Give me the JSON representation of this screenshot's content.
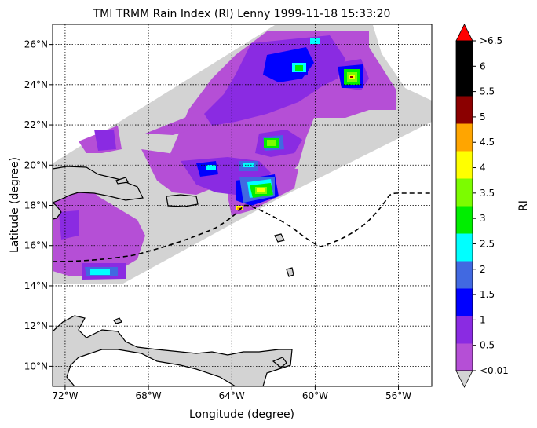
{
  "title": "TMI TRMM Rain Index (RI) Lenny 1999-11-18 15:33:20",
  "xlabel": "Longitude (degree)",
  "ylabel": "Latitude (degree)",
  "colorbar": {
    "label": "RI",
    "tick_labels": [
      "<0.01",
      "0.5",
      "1",
      "1.5",
      "2",
      "2.5",
      "3",
      "3.5",
      "4",
      "4.5",
      "5",
      "5.5",
      "6",
      ">6.5"
    ],
    "under_color": "#d3d3d3",
    "over_color": "#ff0000",
    "colors": [
      "#b54fd6",
      "#8a2be2",
      "#0000ff",
      "#4169e1",
      "#00ffff",
      "#00ee00",
      "#7cfc00",
      "#ffff00",
      "#ffa500",
      "#8b0000",
      "#000000",
      "#000000"
    ]
  },
  "map": {
    "lon_ticks": [
      "72°W",
      "68°W",
      "64°W",
      "60°W",
      "56°W"
    ],
    "lat_ticks": [
      "26°N",
      "24°N",
      "22°N",
      "20°N",
      "18°N",
      "16°N",
      "14°N",
      "12°N",
      "10°N"
    ],
    "lon_range": [
      -72.6,
      -54.4
    ],
    "lat_range": [
      9.0,
      27.0
    ],
    "swath_color": "#d3d3d3",
    "track_style": "dashed"
  },
  "chart_data": {
    "type": "heatmap",
    "title": "TMI TRMM Rain Index (RI) Lenny 1999-11-18 15:33:20",
    "xlabel": "Longitude (degree)",
    "ylabel": "Latitude (degree)",
    "variable": "RI",
    "x_range": [
      -72.6,
      -54.4
    ],
    "y_range": [
      9.0,
      27.0
    ],
    "color_levels": [
      0.01,
      0.5,
      1,
      1.5,
      2,
      2.5,
      3,
      3.5,
      4,
      4.5,
      5,
      5.5,
      6,
      6.5
    ],
    "rain_cells": [
      {
        "lon": -58.2,
        "lat": 24.2,
        "ri": 3.5
      },
      {
        "lon": -61.9,
        "lat": 21.1,
        "ri": 3.0
      },
      {
        "lon": -62.6,
        "lat": 18.7,
        "ri": 3.5
      },
      {
        "lon": -63.0,
        "lat": 17.8,
        "ri": 4.5
      },
      {
        "lon": -70.7,
        "lat": 14.6,
        "ri": 2.5
      },
      {
        "lon": -60.7,
        "lat": 24.8,
        "ri": 2.5
      },
      {
        "lon": -60.5,
        "lat": 26.1,
        "ri": 2.0
      },
      {
        "lon": -67.0,
        "lat": 19.8,
        "ri": 2.0
      },
      {
        "lon": -63.7,
        "lat": 19.9,
        "ri": 2.0
      },
      {
        "lon": -65.0,
        "lat": 18.8,
        "ri": 1.5
      }
    ]
  }
}
